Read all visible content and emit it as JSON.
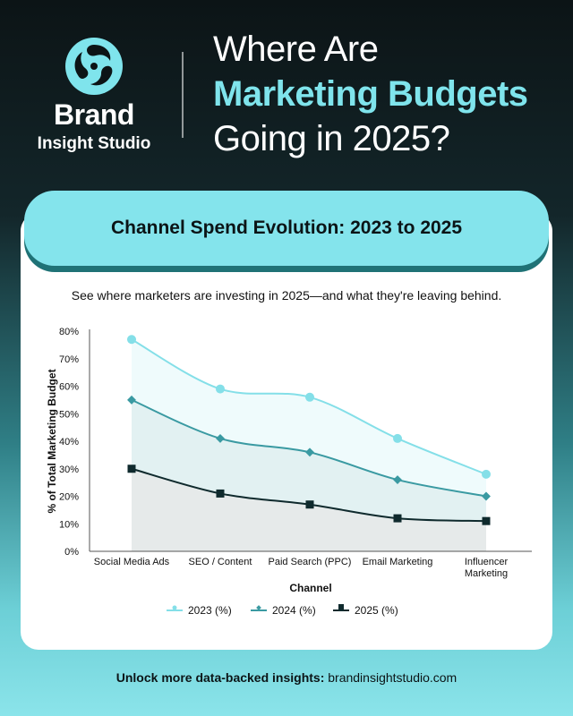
{
  "brand": {
    "name": "Brand",
    "subtitle": "Insight Studio",
    "icon": "swirl-logo-icon"
  },
  "headline": {
    "line1": "Where Are",
    "line2": "Marketing Budgets",
    "line3": "Going in 2025?"
  },
  "colors": {
    "accent": "#7fe4ec",
    "series_2023": "#84dfe8",
    "series_2024": "#3a9aa2",
    "series_2025": "#0f2a2d"
  },
  "banner": {
    "title": "Channel Spend Evolution: 2023 to 2025"
  },
  "subtitle": "See where marketers are investing in 2025—and what they're leaving behind.",
  "chart_data": {
    "type": "area",
    "categories": [
      "Social Media Ads",
      "SEO / Content",
      "Paid Search (PPC)",
      "Email Marketing",
      "Influencer Marketing"
    ],
    "series": [
      {
        "name": "2023 (%)",
        "values": [
          77,
          59,
          56,
          41,
          28
        ]
      },
      {
        "name": "2024 (%)",
        "values": [
          55,
          41,
          36,
          26,
          20
        ]
      },
      {
        "name": "2025 (%)",
        "values": [
          30,
          21,
          17,
          12,
          11
        ]
      }
    ],
    "xlabel": "Channel",
    "ylabel": "% of Total Marketing Budget",
    "ylim": [
      0,
      80
    ],
    "yticks": [
      "0%",
      "10%",
      "20%",
      "30%",
      "40%",
      "50%",
      "60%",
      "70%",
      "80%"
    ],
    "grid": false,
    "legend": "bottom"
  },
  "footer": {
    "bold": "Unlock more data-backed insights:",
    "link": "brandinsightstudio.com"
  }
}
